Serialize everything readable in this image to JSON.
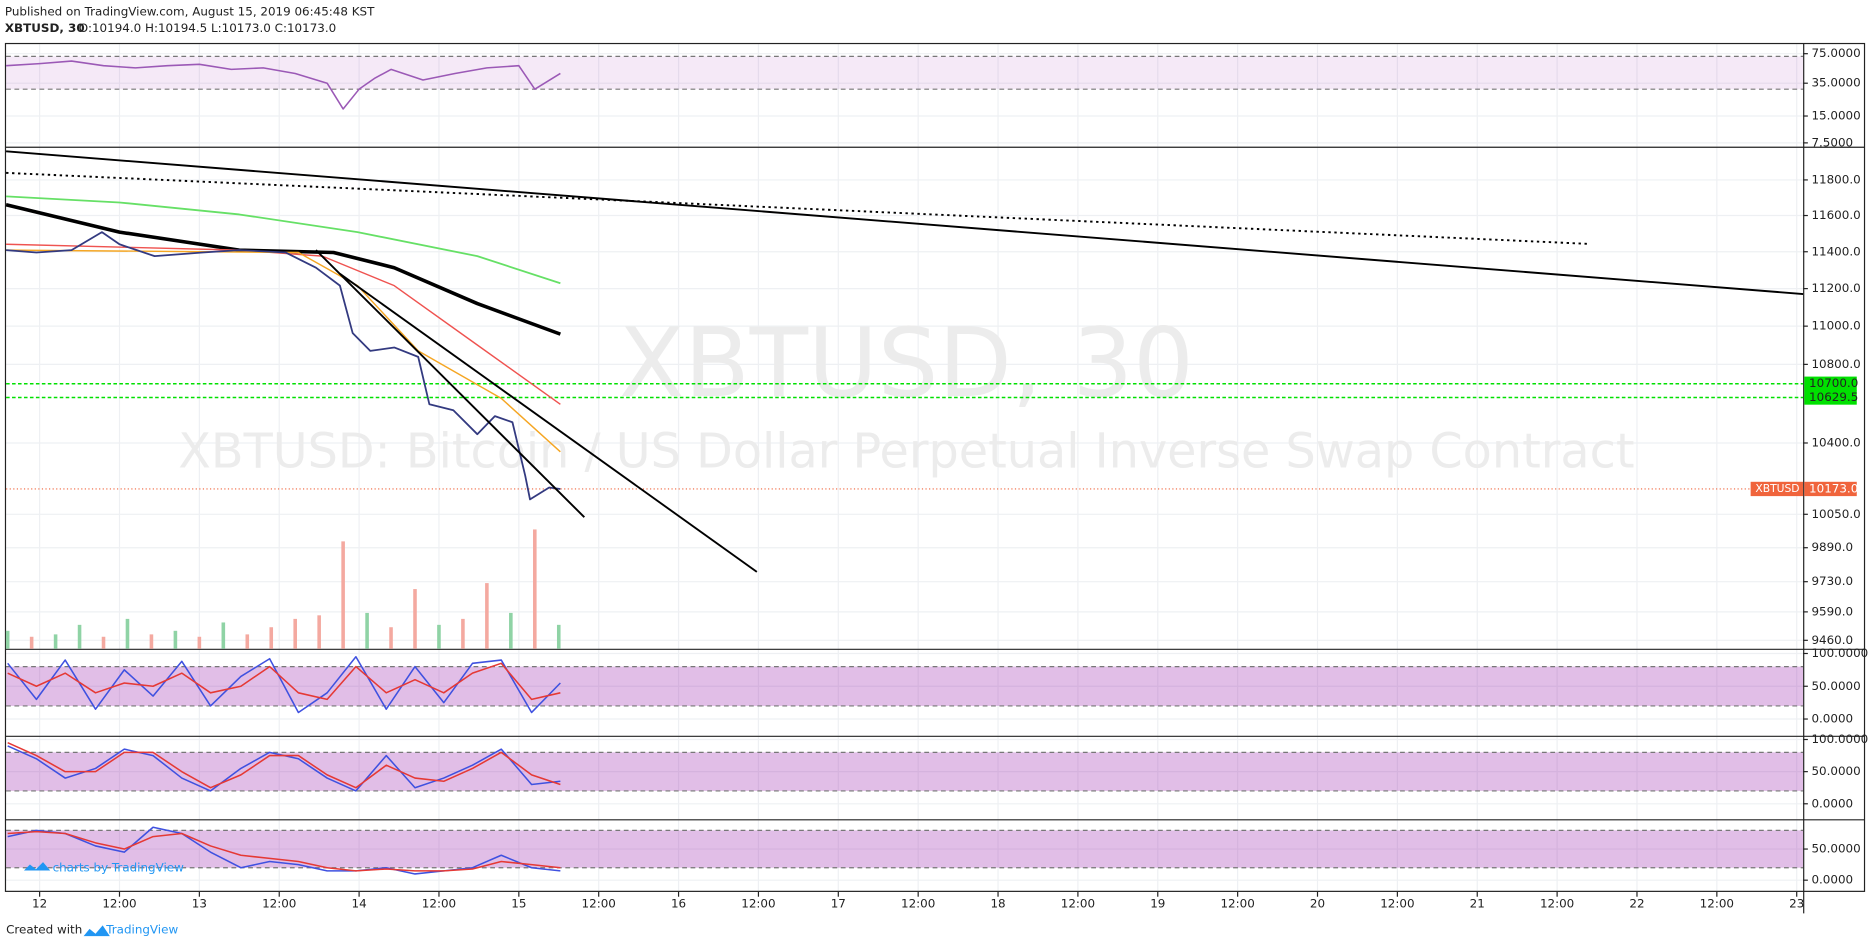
{
  "header": {
    "published": "Published on TradingView.com, August 15, 2019 06:45:48 KST",
    "symbol": "XBTUSD, 30",
    "ohlc": "O:10194.0 H:10194.5 L:10173.0 C:10173.0"
  },
  "footer": {
    "created": "Created with",
    "brand": "TradingView",
    "badge": "charts by TradingView"
  },
  "chart_data": [
    {
      "type": "line",
      "log": true,
      "ylim": [
        6.8,
        96
      ],
      "yticks": [
        {
          "value": 75,
          "label": "75.0000"
        },
        {
          "value": 35,
          "label": "35.0000"
        },
        {
          "value": 15,
          "label": "15.0000"
        },
        {
          "value": 7.5,
          "label": "7.5000"
        }
      ],
      "bands": [
        30,
        70
      ],
      "band_color": "#9c27b0",
      "band_opacity": 0.1,
      "x": [
        -0.21,
        0,
        0.2,
        0.4,
        0.6,
        0.8,
        1,
        1.2,
        1.4,
        1.6,
        1.8,
        1.9,
        2,
        2.1,
        2.2,
        2.4,
        2.6,
        2.8,
        3,
        3.1,
        3.26
      ],
      "series": [
        {
          "color": "#9b59b6",
          "values": [
            55,
            58,
            62,
            55,
            52,
            55,
            57,
            50,
            52,
            45,
            35,
            18,
            30,
            40,
            50,
            38,
            45,
            52,
            55,
            30,
            45
          ]
        }
      ]
    },
    {
      "type": "line",
      "log": true,
      "ylim": [
        9422,
        11983
      ],
      "xlim": [
        -0.21,
        11.04
      ],
      "xticks": [
        {
          "value": 0,
          "label": "12"
        },
        {
          "value": 0.5,
          "label": "12:00"
        },
        {
          "value": 1,
          "label": "13"
        },
        {
          "value": 1.5,
          "label": "12:00"
        },
        {
          "value": 2,
          "label": "14"
        },
        {
          "value": 2.5,
          "label": "12:00"
        },
        {
          "value": 3,
          "label": "15"
        },
        {
          "value": 3.5,
          "label": "12:00"
        },
        {
          "value": 4,
          "label": "16"
        },
        {
          "value": 4.5,
          "label": "12:00"
        },
        {
          "value": 5,
          "label": "17"
        },
        {
          "value": 5.5,
          "label": "12:00"
        },
        {
          "value": 6,
          "label": "18"
        },
        {
          "value": 6.5,
          "label": "12:00"
        },
        {
          "value": 7,
          "label": "19"
        },
        {
          "value": 7.5,
          "label": "12:00"
        },
        {
          "value": 8,
          "label": "20"
        },
        {
          "value": 8.5,
          "label": "12:00"
        },
        {
          "value": 9,
          "label": "21"
        },
        {
          "value": 9.5,
          "label": "12:00"
        },
        {
          "value": 10,
          "label": "22"
        },
        {
          "value": 10.5,
          "label": "12:00"
        },
        {
          "value": 11,
          "label": "23"
        }
      ],
      "yticks": [
        {
          "value": 11800,
          "label": "11800.0"
        },
        {
          "value": 11600,
          "label": "11600.0"
        },
        {
          "value": 11400,
          "label": "11400.0"
        },
        {
          "value": 11200,
          "label": "11200.0"
        },
        {
          "value": 11000,
          "label": "11000.0"
        },
        {
          "value": 10800,
          "label": "10800.0"
        },
        {
          "value": 10400,
          "label": "10400.0"
        },
        {
          "value": 10050,
          "label": "10050.0"
        },
        {
          "value": 9890,
          "label": "9890.0"
        },
        {
          "value": 9730,
          "label": "9730.0"
        },
        {
          "value": 9590,
          "label": "9590.0"
        },
        {
          "value": 9460,
          "label": "9460.0"
        }
      ],
      "watermark": [
        "XBTUSD, 30",
        "XBTUSD: Bitcoin / US Dollar Perpetual Inverse Swap Contract"
      ],
      "volume": {
        "ylim": [
          0,
          100
        ],
        "x": [
          -0.2,
          -0.05,
          0.1,
          0.25,
          0.4,
          0.55,
          0.7,
          0.85,
          1.0,
          1.15,
          1.3,
          1.45,
          1.6,
          1.75,
          1.9,
          2.05,
          2.2,
          2.35,
          2.5,
          2.65,
          2.8,
          2.95,
          3.1,
          3.25
        ],
        "values": [
          15,
          10,
          12,
          20,
          10,
          25,
          12,
          15,
          10,
          22,
          12,
          18,
          25,
          28,
          90,
          30,
          18,
          50,
          20,
          25,
          55,
          30,
          100,
          20
        ],
        "colors": [
          "#8fd3a5",
          "#f4a9a0",
          "#8fd3a5",
          "#8fd3a5",
          "#f4a9a0",
          "#8fd3a5",
          "#f4a9a0",
          "#8fd3a5",
          "#f4a9a0",
          "#8fd3a5",
          "#f4a9a0",
          "#f4a9a0",
          "#f4a9a0",
          "#f4a9a0",
          "#f4a9a0",
          "#8fd3a5",
          "#f4a9a0",
          "#f4a9a0",
          "#8fd3a5",
          "#f4a9a0",
          "#f4a9a0",
          "#8fd3a5",
          "#f4a9a0",
          "#8fd3a5"
        ]
      },
      "series": [
        {
          "color": "#000000",
          "width": 3,
          "x": [
            -0.21,
            0.5,
            1.25,
            1.84,
            2.22,
            2.74,
            3.26
          ],
          "values": [
            11660,
            11508,
            11409,
            11396,
            11313,
            11120,
            10958
          ]
        },
        {
          "color": "#66e066",
          "width": 1.5,
          "x": [
            -0.21,
            0.5,
            1.25,
            1.99,
            2.74,
            3.26
          ],
          "values": [
            11707,
            11673,
            11606,
            11508,
            11376,
            11229
          ]
        },
        {
          "color": "#ef5350",
          "width": 1.2,
          "x": [
            -0.21,
            1.25,
            1.77,
            2.22,
            2.74,
            3.26
          ],
          "values": [
            11441,
            11409,
            11376,
            11216,
            10901,
            10595
          ]
        },
        {
          "color": "#f5a623",
          "width": 1.2,
          "x": [
            -0.21,
            1.62,
            1.99,
            2.37,
            2.89,
            3.26
          ],
          "values": [
            11409,
            11396,
            11216,
            10870,
            10625,
            10356
          ]
        },
        {
          "color": "#333a80",
          "width": 1.5,
          "x": [
            -0.21,
            -0.02,
            0.2,
            0.39,
            0.5,
            0.72,
            1.02,
            1.25,
            1.54,
            1.73,
            1.88,
            1.96,
            2.07,
            2.22,
            2.37,
            2.44,
            2.59,
            2.74,
            2.85,
            2.96,
            3.04,
            3.07,
            3.19,
            3.26
          ],
          "values": [
            11409,
            11396,
            11409,
            11508,
            11441,
            11376,
            11396,
            11409,
            11396,
            11313,
            11216,
            10963,
            10870,
            10888,
            10839,
            10595,
            10565,
            10444,
            10535,
            10504,
            10238,
            10122,
            10180,
            10173
          ]
        }
      ],
      "trendlines": [
        {
          "color": "#000000",
          "dotted": false,
          "x": [
            -0.21,
            11.04
          ],
          "values": [
            11963,
            11171
          ]
        },
        {
          "color": "#000000",
          "dotted": true,
          "x": [
            -0.21,
            9.7
          ],
          "values": [
            11840,
            11443
          ]
        },
        {
          "color": "#000000",
          "dotted": false,
          "x": [
            1.73,
            3.41
          ],
          "values": [
            11409,
            10036
          ]
        },
        {
          "color": "#000000",
          "dotted": false,
          "x": [
            1.88,
            4.49
          ],
          "values": [
            11280,
            9776
          ]
        }
      ],
      "hlines": [
        {
          "value": 10700,
          "label": "10700.0",
          "color": "#00e000"
        },
        {
          "value": 10629.5,
          "label": "10629.5",
          "color": "#00e000"
        }
      ],
      "last": {
        "name": "XBTUSD",
        "value": 10173,
        "label": "10173.0",
        "color": "#f0643c"
      }
    },
    {
      "type": "line",
      "ylim": [
        -25.5,
        105.5
      ],
      "yticks": [
        {
          "value": 100,
          "label": "100.0000"
        },
        {
          "value": 50,
          "label": "50.0000"
        },
        {
          "value": 0,
          "label": "0.0000"
        }
      ],
      "bands": [
        20,
        80
      ],
      "band_color": "#9c27b0",
      "band_opacity": 0.3,
      "x": [
        -0.2,
        -0.02,
        0.16,
        0.35,
        0.53,
        0.71,
        0.89,
        1.07,
        1.26,
        1.44,
        1.62,
        1.8,
        1.98,
        2.17,
        2.35,
        2.53,
        2.71,
        2.89,
        3.08,
        3.26
      ],
      "series": [
        {
          "color": "#3f51e0",
          "values": [
            85,
            30,
            90,
            15,
            75,
            35,
            88,
            20,
            65,
            92,
            10,
            40,
            95,
            15,
            80,
            25,
            85,
            90,
            10,
            55
          ]
        },
        {
          "color": "#e53935",
          "values": [
            70,
            50,
            70,
            40,
            55,
            50,
            70,
            40,
            50,
            80,
            40,
            30,
            80,
            40,
            60,
            40,
            70,
            85,
            30,
            40
          ]
        }
      ]
    },
    {
      "type": "line",
      "ylim": [
        -24,
        104
      ],
      "yticks": [
        {
          "value": 100,
          "label": "100.0000"
        },
        {
          "value": 50,
          "label": "50.0000"
        },
        {
          "value": 0,
          "label": "0.0000"
        }
      ],
      "bands": [
        20,
        80
      ],
      "band_color": "#9c27b0",
      "band_opacity": 0.3,
      "x": [
        -0.2,
        -0.02,
        0.16,
        0.35,
        0.53,
        0.71,
        0.89,
        1.07,
        1.26,
        1.44,
        1.62,
        1.8,
        1.98,
        2.17,
        2.35,
        2.53,
        2.71,
        2.89,
        3.08,
        3.26
      ],
      "series": [
        {
          "color": "#3f51e0",
          "values": [
            90,
            70,
            40,
            55,
            85,
            75,
            40,
            20,
            55,
            80,
            70,
            40,
            20,
            75,
            25,
            40,
            60,
            85,
            30,
            35
          ]
        },
        {
          "color": "#e53935",
          "values": [
            95,
            75,
            50,
            50,
            80,
            80,
            50,
            25,
            45,
            75,
            75,
            45,
            25,
            60,
            40,
            35,
            55,
            80,
            45,
            30
          ]
        }
      ]
    },
    {
      "type": "line",
      "ylim": [
        -17,
        96
      ],
      "yticks": [
        {
          "value": 50,
          "label": "50.0000"
        },
        {
          "value": 0,
          "label": "0.0000"
        }
      ],
      "bands": [
        20,
        80
      ],
      "band_color": "#9c27b0",
      "band_opacity": 0.3,
      "x": [
        -0.2,
        -0.02,
        0.16,
        0.35,
        0.53,
        0.71,
        0.89,
        1.07,
        1.26,
        1.44,
        1.62,
        1.8,
        1.98,
        2.17,
        2.35,
        2.53,
        2.71,
        2.89,
        3.08,
        3.26
      ],
      "series": [
        {
          "color": "#3f51e0",
          "values": [
            70,
            80,
            75,
            55,
            45,
            85,
            75,
            45,
            20,
            30,
            25,
            15,
            15,
            20,
            10,
            15,
            20,
            40,
            20,
            15
          ]
        },
        {
          "color": "#e53935",
          "values": [
            75,
            78,
            75,
            60,
            50,
            70,
            75,
            55,
            40,
            35,
            30,
            20,
            15,
            18,
            15,
            15,
            18,
            30,
            25,
            20
          ]
        }
      ]
    }
  ]
}
